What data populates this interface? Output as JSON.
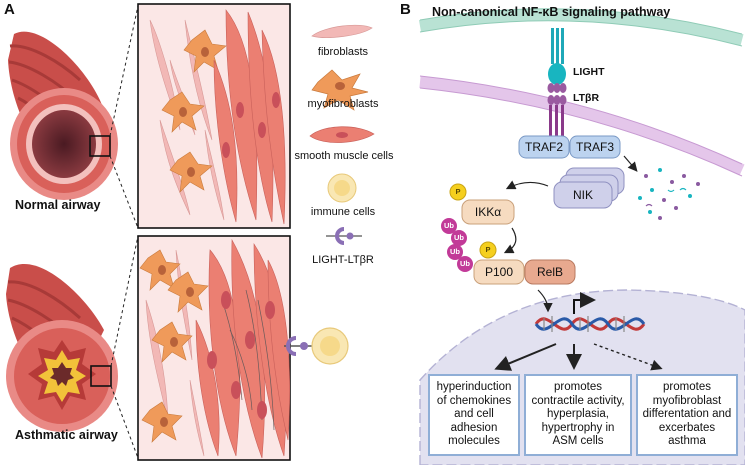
{
  "panels": {
    "a_label": "A",
    "b_label": "B"
  },
  "panel_a": {
    "normal_label": "Normal airway",
    "asthmatic_label": "Asthmatic airway",
    "legend": {
      "fibroblasts": "fibroblasts",
      "myofibroblasts": "myofibroblasts",
      "smooth_muscle": "smooth muscle cells",
      "immune": "immune cells",
      "light_ltbr": "LIGHT-LTβR"
    }
  },
  "panel_b": {
    "title": "Non-canonical NF-κB signaling pathway",
    "light": "LIGHT",
    "ltbr": "LTβR",
    "traf2": "TRAF2",
    "traf3": "TRAF3",
    "nik": "NIK",
    "ikka": "IKKα",
    "p100": "P100",
    "relb": "RelB",
    "p_mark": "P",
    "ub_mark": "Ub",
    "outcomes": [
      "hyperinduction of chemokines and cell adhesion molecules",
      "promotes contractile activity, hyperplasia, hypertrophy in ASM cells",
      "promotes myofibroblast differentation and excerbates asthma"
    ]
  },
  "colors": {
    "airway_wall": "#d9605a",
    "tissue_bg": "#fbe7e6",
    "fibroblast": "#f2b8b6",
    "myofibroblast": "#ef9a5a",
    "smooth_muscle": "#eb7f72",
    "immune": "#f9e7b3",
    "receptor": "#8a6fb5",
    "membrane_outer": "#b9e2d4",
    "membrane_inner": "#e4c6ea",
    "traf_box": "#bcd3ef",
    "nik_box": "#cfd0ea",
    "ikk_box": "#f6dbc0",
    "relb_box": "#e8a98f",
    "phospho": "#f5cf1e",
    "ubiquitin": "#c23a98",
    "nucleus": "#e2e1f0",
    "outcome_border": "#8faed6"
  }
}
